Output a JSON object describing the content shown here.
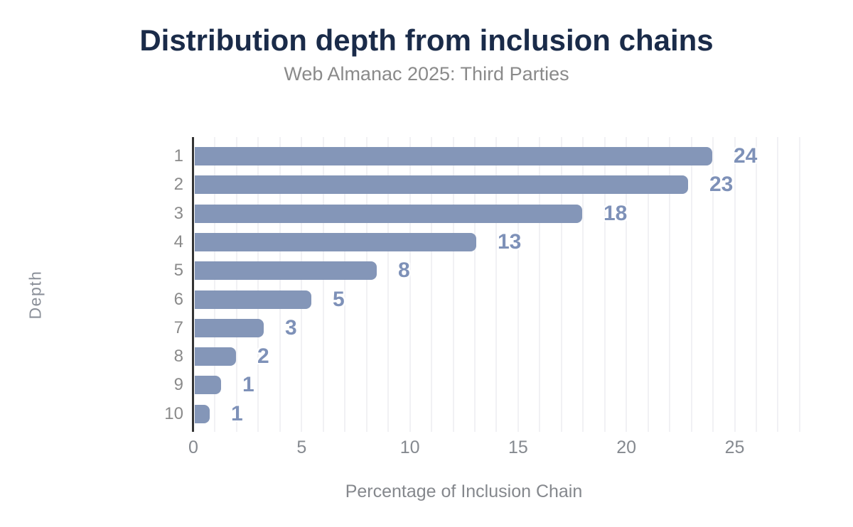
{
  "header": {
    "title": "Distribution depth from inclusion chains",
    "subtitle": "Web Almanac 2025: Third Parties"
  },
  "chart_data": {
    "type": "bar",
    "orientation": "horizontal",
    "title": "Distribution depth from inclusion chains",
    "subtitle": "Web Almanac 2025: Third Parties",
    "xlabel": "Percentage of Inclusion Chain",
    "ylabel": "Depth",
    "categories": [
      "1",
      "2",
      "3",
      "4",
      "5",
      "6",
      "7",
      "8",
      "9",
      "10"
    ],
    "values": [
      23.9,
      22.8,
      17.9,
      13.0,
      8.4,
      5.4,
      3.2,
      1.9,
      1.2,
      0.7
    ],
    "value_labels": [
      "24",
      "23",
      "18",
      "13",
      "8",
      "5",
      "3",
      "2",
      "1",
      "1"
    ],
    "xlim": [
      0,
      28
    ],
    "xticks": [
      0,
      5,
      10,
      15,
      20,
      25
    ],
    "grid": "faint vertical gridline every 1 unit",
    "legend": "none"
  },
  "colors": {
    "title": "#1a2b49",
    "subtitle": "#8a8a8a",
    "bar": "#8496b8",
    "value_label": "#7e91b8",
    "axis_line": "#333333",
    "gridline": "#f1f1f4",
    "x_tick_label": "#85898f",
    "y_tick_label": "#8a8a8a",
    "axis_title": "#85888d"
  }
}
